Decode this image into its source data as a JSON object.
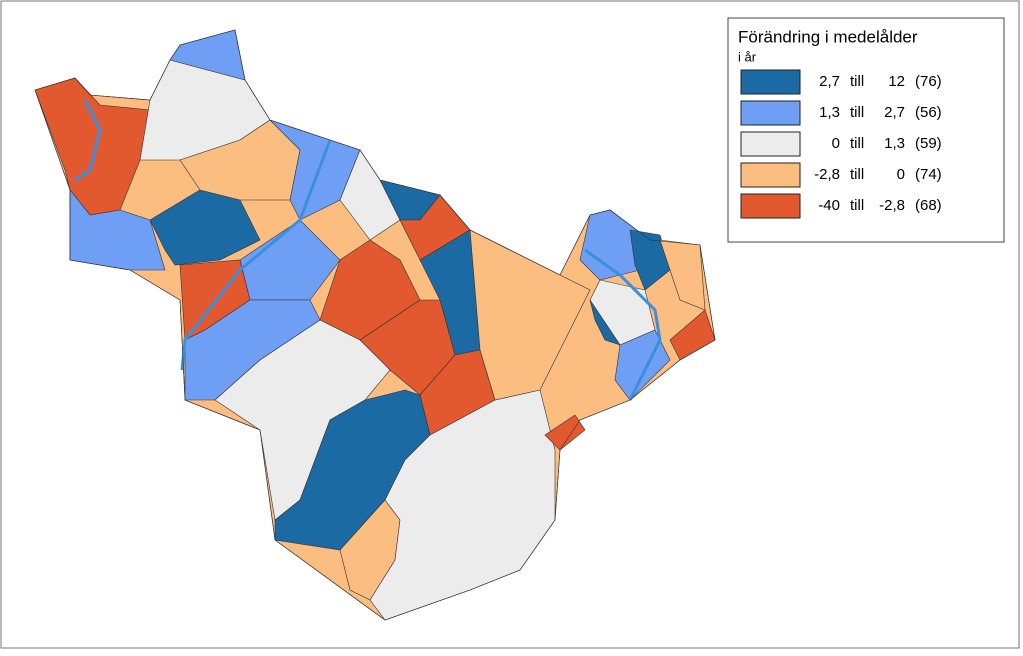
{
  "legend": {
    "title": "Förändring i medelålder",
    "subtitle": "i år",
    "connector": "till",
    "items": [
      {
        "color": "#1c6aa3",
        "from": "2,7",
        "to": "12",
        "count": "(76)"
      },
      {
        "color": "#6f9ef5",
        "from": "1,3",
        "to": "2,7",
        "count": "(56)"
      },
      {
        "color": "#ececec",
        "from": "0",
        "to": "1,3",
        "count": "(59)"
      },
      {
        "color": "#fbbd80",
        "from": "-2,8",
        "to": "0",
        "count": "(74)"
      },
      {
        "color": "#e3592f",
        "from": "-40",
        "to": "-2,8",
        "count": "(68)"
      }
    ]
  }
}
